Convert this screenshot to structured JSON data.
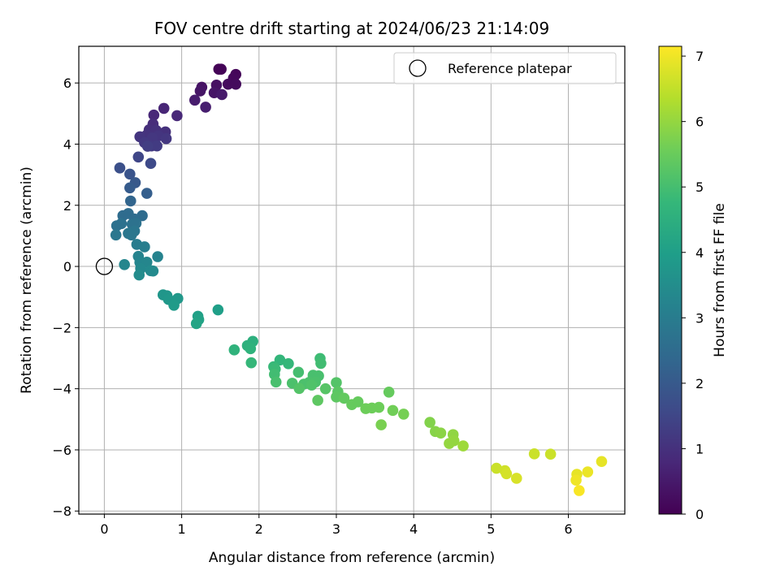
{
  "chart_data": {
    "type": "scatter",
    "title": "FOV centre drift starting at 2024/06/23 21:14:09",
    "xlabel": "Angular distance from reference (arcmin)",
    "ylabel": "Rotation from reference (arcmin)",
    "xlim": [
      -0.33,
      6.73
    ],
    "ylim": [
      -8.1,
      7.2
    ],
    "xticks": [
      0,
      1,
      2,
      3,
      4,
      5,
      6
    ],
    "yticks": [
      -8,
      -6,
      -4,
      -2,
      0,
      2,
      4,
      6
    ],
    "grid": true,
    "legend": {
      "label": "Reference platepar",
      "location": "top-right"
    },
    "reference_point": {
      "x": 0,
      "y": 0
    },
    "colorbar": {
      "label": "Hours from first FF file",
      "colormap": "viridis",
      "range": [
        0,
        7.15
      ],
      "ticks": [
        0,
        1,
        2,
        3,
        4,
        5,
        6,
        7
      ]
    },
    "points": [
      {
        "x": 1.48,
        "y": 6.45,
        "c": 0.05
      },
      {
        "x": 1.51,
        "y": 6.45,
        "c": 0.07
      },
      {
        "x": 1.7,
        "y": 6.28,
        "c": 0.1
      },
      {
        "x": 1.67,
        "y": 6.16,
        "c": 0.15
      },
      {
        "x": 1.6,
        "y": 5.96,
        "c": 0.2
      },
      {
        "x": 1.7,
        "y": 5.96,
        "c": 0.2
      },
      {
        "x": 1.45,
        "y": 5.93,
        "c": 0.3
      },
      {
        "x": 1.26,
        "y": 5.86,
        "c": 0.35
      },
      {
        "x": 1.24,
        "y": 5.74,
        "c": 0.4
      },
      {
        "x": 1.42,
        "y": 5.68,
        "c": 0.4
      },
      {
        "x": 1.52,
        "y": 5.62,
        "c": 0.5
      },
      {
        "x": 1.17,
        "y": 5.44,
        "c": 0.55
      },
      {
        "x": 1.31,
        "y": 5.21,
        "c": 0.6
      },
      {
        "x": 0.77,
        "y": 5.17,
        "c": 0.75
      },
      {
        "x": 0.64,
        "y": 4.95,
        "c": 0.8
      },
      {
        "x": 0.94,
        "y": 4.93,
        "c": 0.8
      },
      {
        "x": 0.63,
        "y": 4.66,
        "c": 0.9
      },
      {
        "x": 0.58,
        "y": 4.47,
        "c": 0.95
      },
      {
        "x": 0.67,
        "y": 4.45,
        "c": 1.0
      },
      {
        "x": 0.79,
        "y": 4.4,
        "c": 1.0
      },
      {
        "x": 0.55,
        "y": 4.3,
        "c": 1.05
      },
      {
        "x": 0.46,
        "y": 4.24,
        "c": 1.1
      },
      {
        "x": 0.7,
        "y": 4.27,
        "c": 1.1
      },
      {
        "x": 0.62,
        "y": 4.2,
        "c": 1.15
      },
      {
        "x": 0.8,
        "y": 4.18,
        "c": 1.15
      },
      {
        "x": 0.52,
        "y": 4.05,
        "c": 1.2
      },
      {
        "x": 0.61,
        "y": 3.94,
        "c": 1.2
      },
      {
        "x": 0.68,
        "y": 3.94,
        "c": 1.25
      },
      {
        "x": 0.56,
        "y": 3.93,
        "c": 1.3
      },
      {
        "x": 0.44,
        "y": 3.58,
        "c": 1.5
      },
      {
        "x": 0.6,
        "y": 3.37,
        "c": 1.6
      },
      {
        "x": 0.2,
        "y": 3.22,
        "c": 1.75
      },
      {
        "x": 0.33,
        "y": 3.02,
        "c": 1.85
      },
      {
        "x": 0.4,
        "y": 2.74,
        "c": 1.95
      },
      {
        "x": 0.33,
        "y": 2.57,
        "c": 2.05
      },
      {
        "x": 0.55,
        "y": 2.39,
        "c": 2.15
      },
      {
        "x": 0.34,
        "y": 2.14,
        "c": 2.3
      },
      {
        "x": 0.49,
        "y": 1.66,
        "c": 2.5
      },
      {
        "x": 0.24,
        "y": 1.66,
        "c": 2.5
      },
      {
        "x": 0.31,
        "y": 1.73,
        "c": 2.5
      },
      {
        "x": 0.39,
        "y": 1.55,
        "c": 2.55
      },
      {
        "x": 0.16,
        "y": 1.33,
        "c": 2.65
      },
      {
        "x": 0.22,
        "y": 1.4,
        "c": 2.65
      },
      {
        "x": 0.36,
        "y": 1.38,
        "c": 2.7
      },
      {
        "x": 0.41,
        "y": 1.41,
        "c": 2.7
      },
      {
        "x": 0.39,
        "y": 1.16,
        "c": 2.8
      },
      {
        "x": 0.31,
        "y": 1.08,
        "c": 2.85
      },
      {
        "x": 0.35,
        "y": 1.03,
        "c": 2.85
      },
      {
        "x": 0.15,
        "y": 1.03,
        "c": 2.85
      },
      {
        "x": 0.42,
        "y": 0.72,
        "c": 3.0
      },
      {
        "x": 0.52,
        "y": 0.64,
        "c": 3.05
      },
      {
        "x": 0.44,
        "y": 0.33,
        "c": 3.2
      },
      {
        "x": 0.69,
        "y": 0.32,
        "c": 3.2
      },
      {
        "x": 0.46,
        "y": 0.13,
        "c": 3.25
      },
      {
        "x": 0.55,
        "y": 0.14,
        "c": 3.3
      },
      {
        "x": 0.26,
        "y": 0.06,
        "c": 3.3
      },
      {
        "x": 0.47,
        "y": -0.07,
        "c": 3.35
      },
      {
        "x": 0.6,
        "y": -0.14,
        "c": 3.4
      },
      {
        "x": 0.63,
        "y": -0.15,
        "c": 3.4
      },
      {
        "x": 0.45,
        "y": -0.28,
        "c": 3.45
      },
      {
        "x": 0.76,
        "y": -0.93,
        "c": 3.75
      },
      {
        "x": 0.81,
        "y": -0.96,
        "c": 3.75
      },
      {
        "x": 0.83,
        "y": -1.08,
        "c": 3.8
      },
      {
        "x": 0.95,
        "y": -1.05,
        "c": 3.8
      },
      {
        "x": 0.9,
        "y": -1.27,
        "c": 3.9
      },
      {
        "x": 1.21,
        "y": -1.63,
        "c": 4.05
      },
      {
        "x": 1.22,
        "y": -1.74,
        "c": 4.1
      },
      {
        "x": 1.47,
        "y": -1.42,
        "c": 4.0
      },
      {
        "x": 1.19,
        "y": -1.87,
        "c": 4.15
      },
      {
        "x": 1.92,
        "y": -2.45,
        "c": 4.5
      },
      {
        "x": 1.85,
        "y": -2.59,
        "c": 4.55
      },
      {
        "x": 1.68,
        "y": -2.73,
        "c": 4.6
      },
      {
        "x": 1.89,
        "y": -2.69,
        "c": 4.6
      },
      {
        "x": 2.27,
        "y": -3.06,
        "c": 4.7
      },
      {
        "x": 2.19,
        "y": -3.28,
        "c": 4.8
      },
      {
        "x": 2.38,
        "y": -3.18,
        "c": 4.75
      },
      {
        "x": 1.9,
        "y": -3.15,
        "c": 4.75
      },
      {
        "x": 2.21,
        "y": -3.36,
        "c": 4.85
      },
      {
        "x": 2.79,
        "y": -3.01,
        "c": 4.9
      },
      {
        "x": 2.8,
        "y": -3.17,
        "c": 4.95
      },
      {
        "x": 2.51,
        "y": -3.46,
        "c": 5.0
      },
      {
        "x": 2.7,
        "y": -3.56,
        "c": 5.05
      },
      {
        "x": 2.77,
        "y": -3.58,
        "c": 5.05
      },
      {
        "x": 2.2,
        "y": -3.53,
        "c": 4.95
      },
      {
        "x": 2.65,
        "y": -3.79,
        "c": 5.1
      },
      {
        "x": 2.43,
        "y": -3.82,
        "c": 5.1
      },
      {
        "x": 2.58,
        "y": -3.85,
        "c": 5.1
      },
      {
        "x": 2.73,
        "y": -3.78,
        "c": 5.1
      },
      {
        "x": 2.22,
        "y": -3.78,
        "c": 5.05
      },
      {
        "x": 3.0,
        "y": -3.8,
        "c": 5.2
      },
      {
        "x": 2.68,
        "y": -3.88,
        "c": 5.15
      },
      {
        "x": 2.52,
        "y": -3.99,
        "c": 5.2
      },
      {
        "x": 2.86,
        "y": -4.0,
        "c": 5.25
      },
      {
        "x": 3.02,
        "y": -4.1,
        "c": 5.3
      },
      {
        "x": 3.0,
        "y": -4.27,
        "c": 5.35
      },
      {
        "x": 3.1,
        "y": -4.31,
        "c": 5.4
      },
      {
        "x": 2.76,
        "y": -4.38,
        "c": 5.35
      },
      {
        "x": 3.2,
        "y": -4.52,
        "c": 5.45
      },
      {
        "x": 3.28,
        "y": -4.43,
        "c": 5.45
      },
      {
        "x": 3.38,
        "y": -4.65,
        "c": 5.55
      },
      {
        "x": 3.46,
        "y": -4.63,
        "c": 5.55
      },
      {
        "x": 3.55,
        "y": -4.61,
        "c": 5.55
      },
      {
        "x": 3.68,
        "y": -4.11,
        "c": 5.45
      },
      {
        "x": 3.73,
        "y": -4.71,
        "c": 5.6
      },
      {
        "x": 3.87,
        "y": -4.83,
        "c": 5.65
      },
      {
        "x": 3.58,
        "y": -5.18,
        "c": 5.7
      },
      {
        "x": 4.21,
        "y": -5.1,
        "c": 5.8
      },
      {
        "x": 4.28,
        "y": -5.4,
        "c": 5.85
      },
      {
        "x": 4.35,
        "y": -5.45,
        "c": 5.9
      },
      {
        "x": 4.51,
        "y": -5.5,
        "c": 5.95
      },
      {
        "x": 4.52,
        "y": -5.7,
        "c": 6.0
      },
      {
        "x": 4.46,
        "y": -5.79,
        "c": 6.0
      },
      {
        "x": 4.64,
        "y": -5.87,
        "c": 6.1
      },
      {
        "x": 5.07,
        "y": -6.6,
        "c": 6.6
      },
      {
        "x": 5.18,
        "y": -6.68,
        "c": 6.65
      },
      {
        "x": 5.2,
        "y": -6.78,
        "c": 6.7
      },
      {
        "x": 5.33,
        "y": -6.93,
        "c": 6.75
      },
      {
        "x": 5.56,
        "y": -6.13,
        "c": 6.6
      },
      {
        "x": 5.77,
        "y": -6.14,
        "c": 6.6
      },
      {
        "x": 6.11,
        "y": -6.8,
        "c": 6.9
      },
      {
        "x": 6.25,
        "y": -6.72,
        "c": 6.95
      },
      {
        "x": 6.43,
        "y": -6.38,
        "c": 6.9
      },
      {
        "x": 6.1,
        "y": -6.99,
        "c": 7.0
      },
      {
        "x": 6.14,
        "y": -7.33,
        "c": 7.1
      }
    ]
  }
}
